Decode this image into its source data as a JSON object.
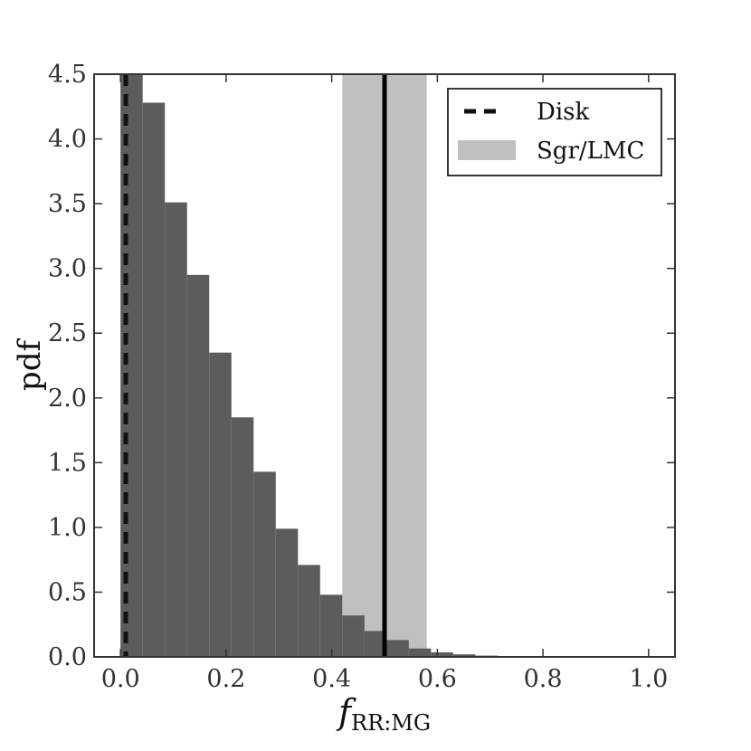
{
  "chart_data": {
    "type": "bar",
    "title": "",
    "xlabel": {
      "main": "f",
      "subscript": "RR:MG"
    },
    "ylabel": "pdf",
    "xlim": [
      -0.05,
      1.05
    ],
    "ylim": [
      0,
      4.5
    ],
    "xticks": [
      0.0,
      0.2,
      0.4,
      0.6,
      0.8,
      1.0
    ],
    "xtick_labels": [
      "0.0",
      "0.2",
      "0.4",
      "0.6",
      "0.8",
      "1.0"
    ],
    "yticks": [
      0.0,
      0.5,
      1.0,
      1.5,
      2.0,
      2.5,
      3.0,
      3.5,
      4.0,
      4.5
    ],
    "ytick_labels": [
      "0.0",
      "0.5",
      "1.0",
      "1.5",
      "2.0",
      "2.5",
      "3.0",
      "3.5",
      "4.0",
      "4.5"
    ],
    "grid": false,
    "legend_position": "top-right",
    "histogram": {
      "bin_width": 0.042,
      "bin_starts": [
        0.0,
        0.042,
        0.084,
        0.126,
        0.168,
        0.21,
        0.252,
        0.294,
        0.336,
        0.378,
        0.42,
        0.462,
        0.504,
        0.546,
        0.588,
        0.63,
        0.672,
        0.714,
        0.756,
        0.798,
        0.84,
        0.882,
        0.924,
        0.966,
        1.008
      ],
      "values": [
        4.5,
        4.28,
        3.51,
        2.95,
        2.35,
        1.85,
        1.43,
        0.99,
        0.71,
        0.48,
        0.32,
        0.2,
        0.13,
        0.065,
        0.035,
        0.02,
        0.01,
        0.005,
        0.003,
        0.002,
        0.001,
        0.001,
        0.001,
        0.001,
        0.001
      ],
      "color": "#5c5c5c"
    },
    "band": {
      "x0": 0.42,
      "x1": 0.58,
      "color": "#c0c0c0"
    },
    "band_center_line": {
      "x": 0.5,
      "color": "#000000"
    },
    "disk_line": {
      "x": 0.01,
      "color": "#111111",
      "style": "dashed"
    },
    "legend": [
      {
        "label": "Disk",
        "kind": "dashed-line"
      },
      {
        "label": "Sgr/LMC",
        "kind": "band"
      }
    ]
  }
}
